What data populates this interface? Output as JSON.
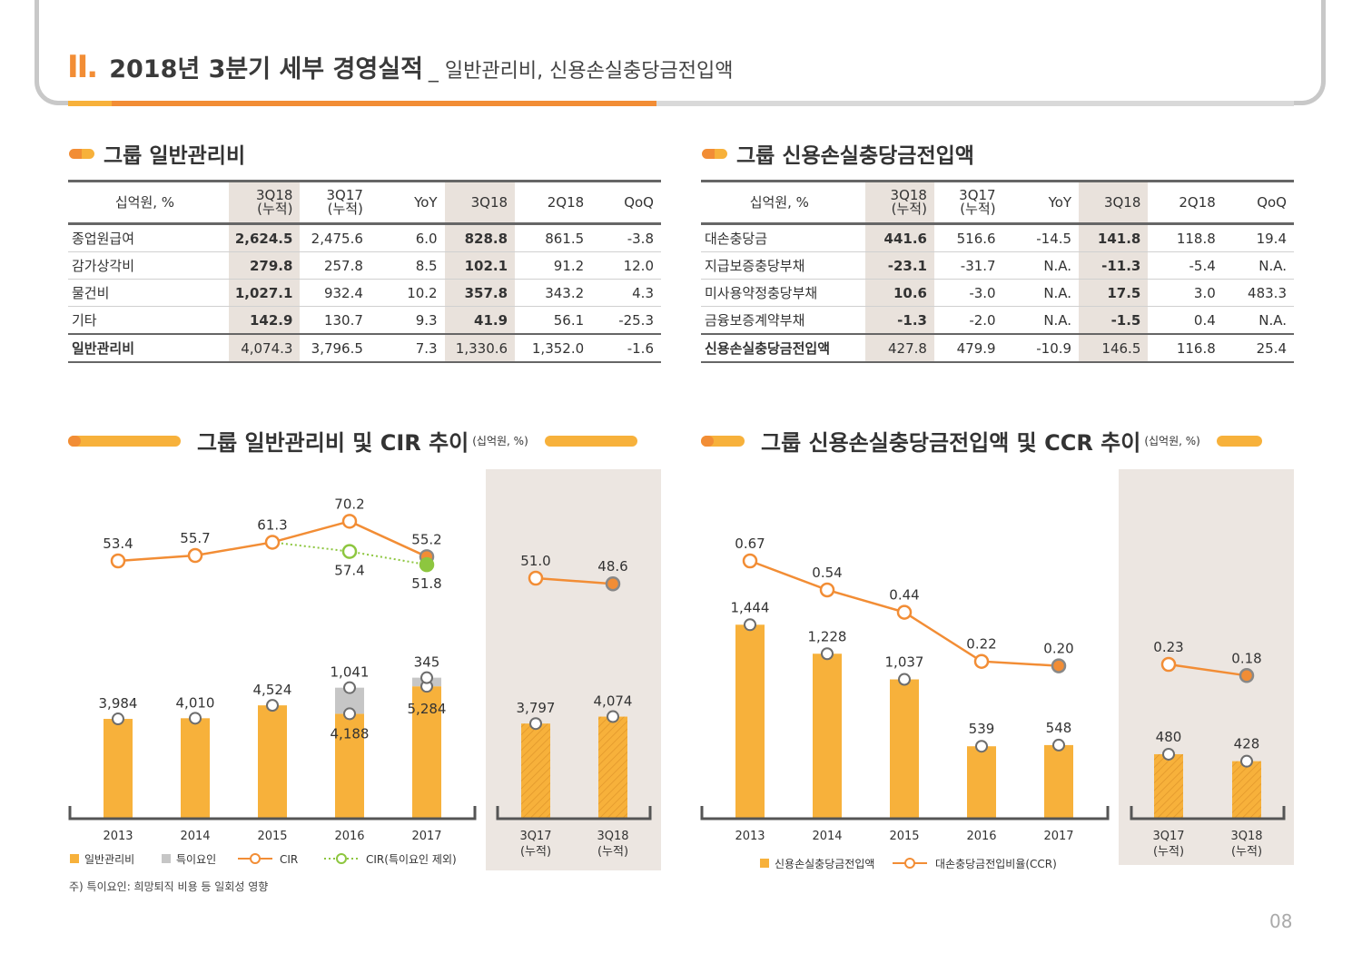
{
  "header": {
    "roman": "II.",
    "title": "2018년 3분기 세부 경영실적",
    "subtitle": "_ 일반관리비, 신용손실충당금전입액",
    "progress": 0.48
  },
  "colors": {
    "orange": "#f28d35",
    "yellow": "#f7b13b",
    "gray": "#c6c6c6",
    "green": "#8dc63f",
    "highlight": "#e9e2dc",
    "panel": "#ece6e1"
  },
  "tables": {
    "ga": {
      "title": "그룹 일반관리비",
      "headers": [
        "십억원, %",
        "3Q18\n(누적)",
        "3Q17\n(누적)",
        "YoY",
        "3Q18",
        "2Q18",
        "QoQ"
      ],
      "rows": [
        [
          "종업원급여",
          "2,624.5",
          "2,475.6",
          "6.0",
          "828.8",
          "861.5",
          "-3.8"
        ],
        [
          "감가상각비",
          "279.8",
          "257.8",
          "8.5",
          "102.1",
          "91.2",
          "12.0"
        ],
        [
          "물건비",
          "1,027.1",
          "932.4",
          "10.2",
          "357.8",
          "343.2",
          "4.3"
        ],
        [
          "기타",
          "142.9",
          "130.7",
          "9.3",
          "41.9",
          "56.1",
          "-25.3"
        ],
        [
          "일반관리비",
          "4,074.3",
          "3,796.5",
          "7.3",
          "1,330.6",
          "1,352.0",
          "-1.6"
        ]
      ]
    },
    "provision": {
      "title": "그룹 신용손실충당금전입액",
      "headers": [
        "십억원, %",
        "3Q18\n(누적)",
        "3Q17\n(누적)",
        "YoY",
        "3Q18",
        "2Q18",
        "QoQ"
      ],
      "rows": [
        [
          "대손충당금",
          "441.6",
          "516.6",
          "-14.5",
          "141.8",
          "118.8",
          "19.4"
        ],
        [
          "지급보증충당부채",
          "-23.1",
          "-31.7",
          "N.A.",
          "-11.3",
          "-5.4",
          "N.A."
        ],
        [
          "미사용약정충당부채",
          "10.6",
          "-3.0",
          "N.A.",
          "17.5",
          "3.0",
          "483.3"
        ],
        [
          "금융보증계약부채",
          "-1.3",
          "-2.0",
          "N.A.",
          "-1.5",
          "0.4",
          "N.A."
        ],
        [
          "신용손실충당금전입액",
          "427.8",
          "479.9",
          "-10.9",
          "146.5",
          "116.8",
          "25.4"
        ]
      ]
    }
  },
  "chart_data": [
    {
      "type": "bar",
      "title": "그룹 일반관리비 및 CIR 추이",
      "unit": "(십억원, %)",
      "categories": [
        "2013",
        "2014",
        "2015",
        "2016",
        "2017"
      ],
      "side_categories": [
        "3Q17\n(누적)",
        "3Q18\n(누적)"
      ],
      "series": [
        {
          "name": "일반관리비",
          "values": [
            3984,
            4010,
            4524,
            4188,
            5284
          ],
          "labels": [
            "3,984",
            "4,010",
            "4,524",
            "4,188",
            "5,284"
          ],
          "side_values": [
            3797,
            4074
          ],
          "side_labels": [
            "3,797",
            "4,074"
          ]
        },
        {
          "name": "특이요인",
          "values": [
            null,
            null,
            null,
            1041,
            345
          ],
          "labels": [
            "",
            "",
            "",
            "1,041",
            "345"
          ]
        },
        {
          "name": "CIR",
          "values": [
            53.4,
            55.7,
            61.3,
            70.2,
            55.2
          ],
          "labels": [
            "53.4",
            "55.7",
            "61.3",
            "70.2",
            "55.2"
          ],
          "side_values": [
            51.0,
            48.6
          ],
          "side_labels": [
            "51.0",
            "48.6"
          ]
        },
        {
          "name": "CIR(특이요인 제외)",
          "values": [
            null,
            null,
            61.3,
            57.4,
            51.8
          ],
          "labels": [
            "",
            "",
            "",
            "57.4",
            "51.8"
          ]
        }
      ],
      "legend": [
        "일반관리비",
        "특이요인",
        "CIR",
        "CIR(특이요인 제외)"
      ]
    },
    {
      "type": "bar",
      "title": "그룹 신용손실충당금전입액 및 CCR 추이",
      "unit": "(십억원, %)",
      "categories": [
        "2013",
        "2014",
        "2015",
        "2016",
        "2017"
      ],
      "side_categories": [
        "3Q17\n(누적)",
        "3Q18\n(누적)"
      ],
      "series": [
        {
          "name": "신용손실충당금전입액",
          "values": [
            1444,
            1228,
            1037,
            539,
            548
          ],
          "labels": [
            "1,444",
            "1,228",
            "1,037",
            "539",
            "548"
          ],
          "side_values": [
            480,
            428
          ],
          "side_labels": [
            "480",
            "428"
          ]
        },
        {
          "name": "대손충당금전입비율(CCR)",
          "values": [
            0.67,
            0.54,
            0.44,
            0.22,
            0.2
          ],
          "labels": [
            "0.67",
            "0.54",
            "0.44",
            "0.22",
            "0.20"
          ],
          "side_values": [
            0.23,
            0.18
          ],
          "side_labels": [
            "0.23",
            "0.18"
          ]
        }
      ],
      "legend": [
        "신용손실충당금전입액",
        "대손충당금전입비율(CCR)"
      ]
    }
  ],
  "note": "주) 특이요인: 희망퇴직 비용 등 일회성 영향",
  "page_number": "08"
}
